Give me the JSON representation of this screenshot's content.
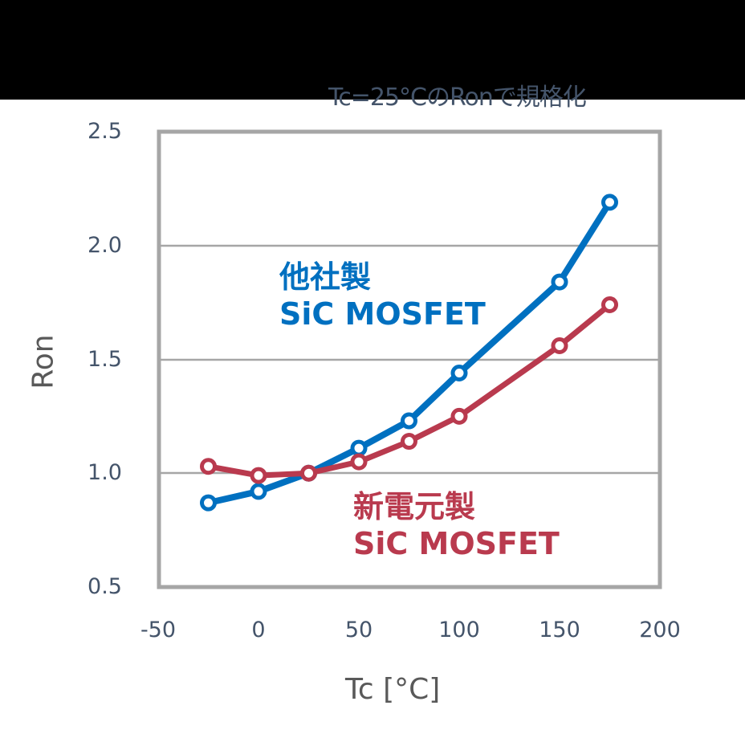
{
  "subtitle": "Tc=25°CのRonで規格化",
  "axes": {
    "x_label": "Tc [°C]",
    "y_label": "Ron",
    "x_ticks": [
      "-50",
      "0",
      "50",
      "100",
      "150",
      "200"
    ],
    "y_ticks": [
      "2.5",
      "2.0",
      "1.5",
      "1.0",
      "0.5"
    ]
  },
  "annotations": {
    "competitor": {
      "line1": "他社製",
      "line2": "SiC MOSFET",
      "color": "#0070c0"
    },
    "shindengen": {
      "line1": "新電元製",
      "line2": "SiC MOSFET",
      "color": "#b93a4e"
    }
  },
  "chart_data": {
    "type": "line",
    "title": "Tc=25°CのRonで規格化",
    "xlabel": "Tc [°C]",
    "ylabel": "Ron",
    "xlim": [
      -50,
      200
    ],
    "ylim": [
      0.5,
      2.5
    ],
    "x_ticks": [
      -50,
      0,
      50,
      100,
      150,
      200
    ],
    "y_ticks": [
      0.5,
      1.0,
      1.5,
      2.0,
      2.5
    ],
    "grid": "horizontal",
    "x": [
      -25,
      0,
      25,
      50,
      75,
      100,
      150,
      175
    ],
    "series": [
      {
        "name": "他社製 SiC MOSFET",
        "color": "#0070c0",
        "values": [
          0.87,
          0.92,
          1.0,
          1.11,
          1.23,
          1.44,
          1.84,
          2.19
        ]
      },
      {
        "name": "新電元製 SiC MOSFET",
        "color": "#b93a4e",
        "values": [
          1.03,
          0.99,
          1.0,
          1.05,
          1.14,
          1.25,
          1.56,
          1.74
        ]
      }
    ],
    "legend": "inline annotations"
  }
}
